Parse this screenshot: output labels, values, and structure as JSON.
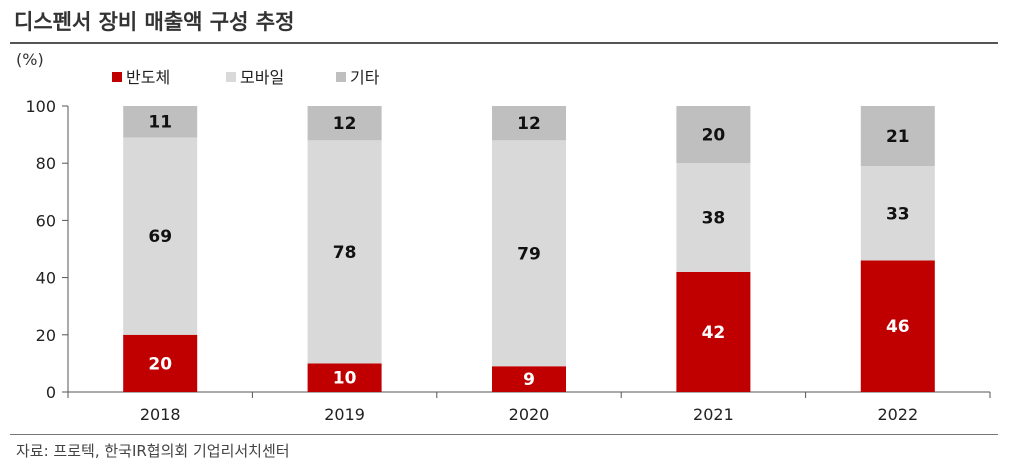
{
  "header": {
    "title": "디스펜서 장비 매출액 구성 추정",
    "unit": "(%)"
  },
  "footer": {
    "source": "자료: 프로텍, 한국IR협의회 기업리서치센터"
  },
  "chart_data": {
    "type": "bar",
    "stacked": true,
    "title": "디스펜서 장비 매출액 구성 추정",
    "ylabel": "(%)",
    "xlabel": "",
    "ylim": [
      0,
      100
    ],
    "yticks": [
      0,
      20,
      40,
      60,
      80,
      100
    ],
    "categories": [
      "2018",
      "2019",
      "2020",
      "2021",
      "2022"
    ],
    "series": [
      {
        "name": "반도체",
        "values": [
          20,
          10,
          9,
          42,
          46
        ],
        "color": "#c00000",
        "label_color": "#ffffff"
      },
      {
        "name": "모바일",
        "values": [
          69,
          78,
          79,
          38,
          33
        ],
        "color": "#d9d9d9",
        "label_color": "#111111"
      },
      {
        "name": "기타",
        "values": [
          11,
          12,
          12,
          20,
          21
        ],
        "color": "#bfbfbf",
        "label_color": "#111111"
      }
    ],
    "legend_position": "top-left",
    "grid": false
  }
}
